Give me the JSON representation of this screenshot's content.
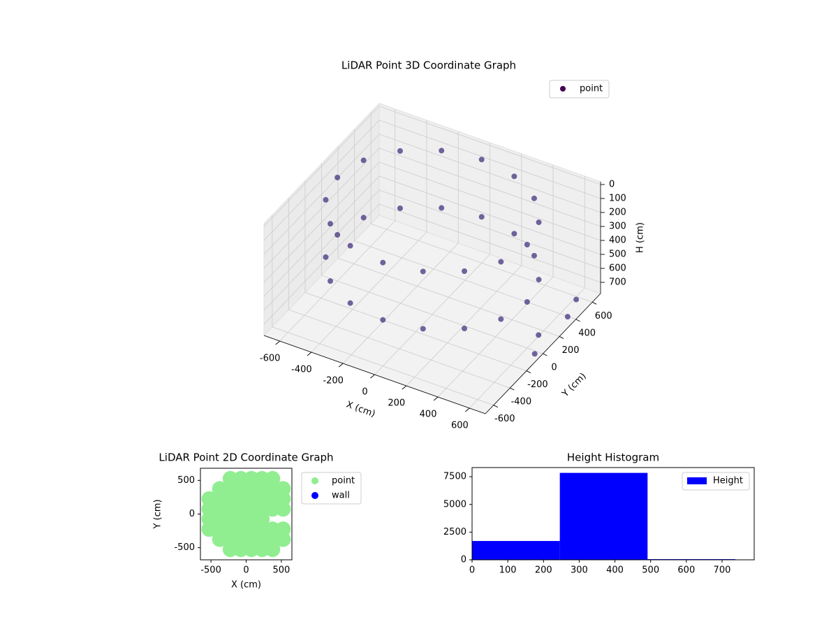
{
  "chart_data": [
    {
      "type": "scatter3d",
      "title": "LiDAR Point 3D Coordinate Graph",
      "xlabel": "X (cm)",
      "ylabel": "Y (cm)",
      "zlabel": "H (cm)",
      "xlim": [
        -700,
        700
      ],
      "ylim": [
        -700,
        700
      ],
      "zlim": [
        780,
        -20
      ],
      "xticks": [
        -600,
        -400,
        -200,
        0,
        200,
        400,
        600
      ],
      "yticks": [
        -600,
        -400,
        -200,
        0,
        200,
        400,
        600
      ],
      "zticks": [
        0,
        100,
        200,
        300,
        400,
        500,
        600,
        700
      ],
      "grid": true,
      "legend": "upper right",
      "series": [
        {
          "name": "point",
          "color": "#46327e",
          "legend_color": "#440154",
          "x": [
            600,
            554,
            424,
            230,
            0,
            -230,
            -424,
            -554,
            -600,
            -554,
            -424,
            -230,
            0,
            230,
            424,
            554,
            600,
            554,
            424,
            230,
            0,
            -230,
            -424,
            -554,
            -600,
            -554,
            -424,
            -230,
            0,
            230,
            424,
            554,
            650,
            700,
            620,
            700
          ],
          "y": [
            0,
            230,
            424,
            554,
            600,
            554,
            424,
            230,
            0,
            -230,
            -424,
            -554,
            -600,
            -554,
            -424,
            -230,
            0,
            230,
            424,
            554,
            600,
            554,
            424,
            230,
            0,
            -230,
            -424,
            -554,
            -600,
            -554,
            -424,
            -230,
            500,
            300,
            100,
            -100
          ],
          "z": [
            40,
            40,
            40,
            40,
            40,
            40,
            40,
            40,
            40,
            40,
            40,
            40,
            40,
            40,
            40,
            40,
            450,
            450,
            450,
            450,
            450,
            450,
            450,
            450,
            450,
            450,
            450,
            450,
            450,
            450,
            450,
            450,
            720,
            700,
            740,
            720
          ]
        }
      ]
    },
    {
      "type": "scatter",
      "title": "LiDAR Point 2D Coordinate Graph",
      "xlabel": "X (cm)",
      "ylabel": "Y (cm)",
      "xlim": [
        -650,
        650
      ],
      "ylim": [
        -680,
        680
      ],
      "xticks": [
        -500,
        0,
        500
      ],
      "yticks": [
        -500,
        0,
        500
      ],
      "legend": "outside right",
      "series": [
        {
          "name": "point",
          "color": "#90ee90",
          "x": [
            -225,
            -75,
            75,
            225,
            375,
            -375,
            -225,
            -75,
            75,
            225,
            375,
            525,
            -525,
            -375,
            -225,
            -75,
            75,
            225,
            375,
            525,
            -525,
            -375,
            -225,
            -75,
            75,
            225,
            375,
            525,
            -525,
            -375,
            -225,
            -75,
            75,
            225,
            -525,
            -375,
            -225,
            -75,
            75,
            225,
            375,
            525,
            -375,
            -225,
            -75,
            75,
            225,
            375,
            525,
            -225,
            -75,
            75,
            225,
            375
          ],
          "values": [
            525,
            525,
            525,
            525,
            525,
            375,
            375,
            375,
            375,
            375,
            375,
            375,
            225,
            225,
            225,
            225,
            225,
            225,
            225,
            225,
            75,
            75,
            75,
            75,
            75,
            75,
            75,
            75,
            -75,
            -75,
            -75,
            -75,
            -75,
            -75,
            -225,
            -225,
            -225,
            -225,
            -225,
            -225,
            -225,
            -225,
            -375,
            -375,
            -375,
            -375,
            -375,
            -375,
            -375,
            -525,
            -525,
            -525,
            -525,
            -525
          ]
        },
        {
          "name": "wall",
          "color": "#0000ff",
          "x": [],
          "values": []
        }
      ]
    },
    {
      "type": "histogram",
      "title": "Height Histogram",
      "name": "Height",
      "color": "#0000ff",
      "bins": [
        0,
        245.7,
        491.4,
        737.1
      ],
      "values": [
        1700,
        7850,
        60
      ],
      "xlim": [
        0,
        790
      ],
      "ylim": [
        0,
        8330
      ],
      "xticks": [
        0,
        100,
        200,
        300,
        400,
        500,
        600,
        700
      ],
      "yticks": [
        0,
        2500,
        5000,
        7500
      ],
      "legend": "upper right"
    }
  ]
}
